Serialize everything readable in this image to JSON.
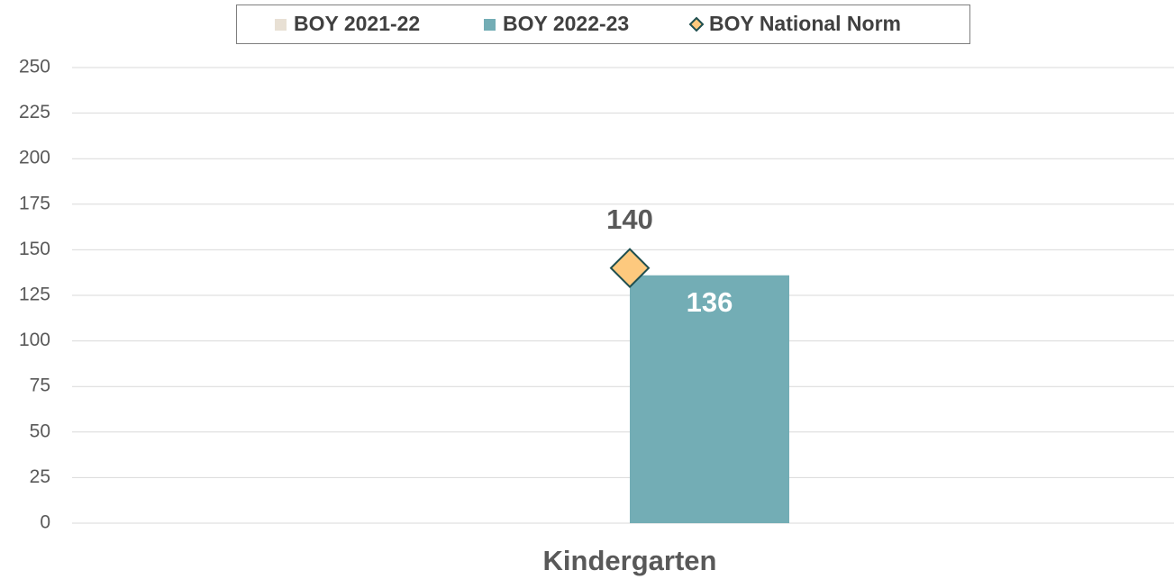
{
  "chart_data": {
    "type": "bar",
    "categories": [
      "Kindergarten"
    ],
    "series": [
      {
        "name": "BOY 2021-22",
        "color": "#e8e0d4",
        "values": [
          null
        ]
      },
      {
        "name": "BOY 2022-23",
        "color": "#73adb5",
        "values": [
          136
        ]
      },
      {
        "name": "BOY National Norm",
        "color": "#fdc97e",
        "marker": "diamond",
        "values": [
          140
        ]
      }
    ],
    "ylim": [
      0,
      250
    ],
    "yticks": [
      0,
      25,
      50,
      75,
      100,
      125,
      150,
      175,
      200,
      225,
      250
    ],
    "grid": true,
    "legend": "top"
  }
}
